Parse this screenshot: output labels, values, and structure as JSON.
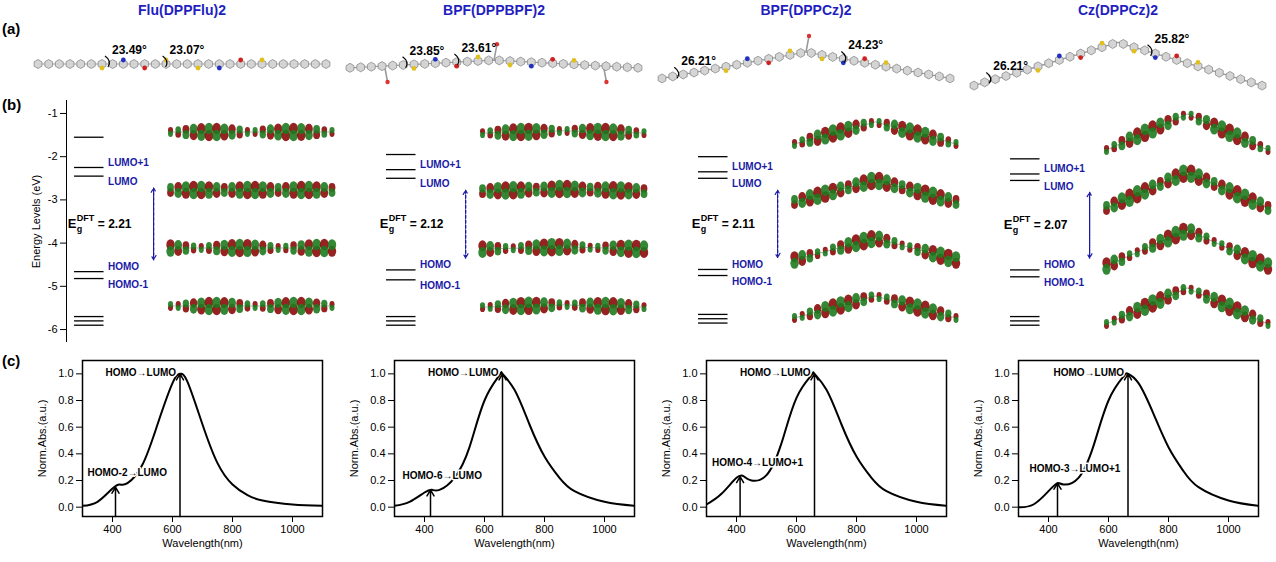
{
  "figure": {
    "panel_labels": [
      "(a)",
      "(b)",
      "(c)"
    ],
    "energy_axis": {
      "label": "Energy Levels (eV)",
      "ylim": [
        -6.3,
        -0.7
      ],
      "yticks": [
        -1,
        -2,
        -3,
        -4,
        -5,
        -6
      ]
    },
    "molecules": [
      {
        "name": "Flu(DPPFlu)2",
        "angles": [
          "23.49°",
          "23.07°"
        ],
        "levels": [
          -1.55,
          -2.25,
          -2.45,
          -4.66,
          -4.82,
          -5.7,
          -5.8,
          -5.9
        ],
        "level_labels": [
          null,
          "LUMO+1",
          "LUMO",
          "HOMO",
          "HOMO-1",
          null,
          null,
          null
        ],
        "gap": {
          "symbol": "E",
          "sub": "g",
          "sup": "DFT",
          "sign": "=",
          "value": 2.21
        }
      },
      {
        "name": "BPF(DPPBPF)2",
        "angles": [
          "23.85°",
          "23.61°"
        ],
        "levels": [
          -1.95,
          -2.3,
          -2.5,
          -4.62,
          -4.85,
          -5.7,
          -5.8,
          -5.9
        ],
        "level_labels": [
          null,
          "LUMO+1",
          "LUMO",
          "HOMO",
          "HOMO-1",
          null,
          null,
          null
        ],
        "gap": {
          "symbol": "E",
          "sub": "g",
          "sup": "DFT",
          "sign": "=",
          "value": 2.12
        }
      },
      {
        "name": "BPF(DPPCz)2",
        "angles": [
          "26.21°",
          "24.23°"
        ],
        "levels": [
          -2.0,
          -2.35,
          -2.5,
          -4.61,
          -4.75,
          -5.65,
          -5.75,
          -5.85
        ],
        "level_labels": [
          null,
          "LUMO+1",
          "LUMO",
          "HOMO",
          "HOMO-1",
          null,
          null,
          null
        ],
        "gap": {
          "symbol": "E",
          "sub": "g",
          "sup": "DFT",
          "sign": "=",
          "value": 2.11
        }
      },
      {
        "name": "Cz(DPPCz)2",
        "angles": [
          "26.21°",
          "25.82°"
        ],
        "levels": [
          -2.05,
          -2.4,
          -2.55,
          -4.62,
          -4.78,
          -5.7,
          -5.8,
          -5.9
        ],
        "level_labels": [
          null,
          "LUMO+1",
          "LUMO",
          "HOMO",
          "HOMO-1",
          null,
          null,
          null
        ],
        "gap": {
          "symbol": "E",
          "sub": "g",
          "sup": "DFT",
          "sign": "=",
          "value": 2.07
        }
      }
    ]
  },
  "chart_data": [
    {
      "type": "line",
      "xlabel": "Wavelength(nm)",
      "ylabel": "Norm.Abs.(a.u.)",
      "color": "#000000",
      "xlim": [
        300,
        1100
      ],
      "xticks": [
        400,
        600,
        800,
        1000
      ],
      "ylim": [
        -0.07,
        1.1
      ],
      "yticks": [
        {
          "value": 0,
          "label": "0.0"
        },
        0.2,
        0.4,
        0.6,
        0.8,
        {
          "value": 1,
          "label": "1.0"
        }
      ],
      "x": [
        300,
        350,
        400,
        425,
        450,
        500,
        550,
        600,
        625,
        650,
        700,
        750,
        800,
        850,
        900,
        1000,
        1100
      ],
      "values": [
        0.01,
        0.04,
        0.14,
        0.17,
        0.18,
        0.32,
        0.62,
        0.93,
        1.0,
        0.94,
        0.62,
        0.33,
        0.17,
        0.09,
        0.05,
        0.02,
        0.01
      ],
      "annotations": [
        {
          "text": "HOMO→LUMO",
          "x": 625,
          "y": 1.0
        },
        {
          "text": "HOMO-2→LUMO",
          "x": 410,
          "y": 0.15
        }
      ]
    },
    {
      "type": "line",
      "xlabel": "Wavelength(nm)",
      "ylabel": "Norm.Abs.(a.u.)",
      "color": "#000000",
      "xlim": [
        300,
        1100
      ],
      "xticks": [
        400,
        600,
        800,
        1000
      ],
      "ylim": [
        -0.07,
        1.1
      ],
      "yticks": [
        {
          "value": 0,
          "label": "0.0"
        },
        0.2,
        0.4,
        0.6,
        0.8,
        {
          "value": 1,
          "label": "1.0"
        }
      ],
      "x": [
        300,
        350,
        400,
        425,
        450,
        500,
        550,
        600,
        650,
        660,
        700,
        750,
        800,
        850,
        900,
        1000,
        1100
      ],
      "values": [
        0.01,
        0.04,
        0.11,
        0.13,
        0.13,
        0.22,
        0.45,
        0.8,
        0.99,
        1.0,
        0.88,
        0.62,
        0.38,
        0.22,
        0.12,
        0.04,
        0.01
      ],
      "annotations": [
        {
          "text": "HOMO→LUMO",
          "x": 660,
          "y": 1.0
        },
        {
          "text": "HOMO-6→LUMO",
          "x": 420,
          "y": 0.13
        }
      ]
    },
    {
      "type": "line",
      "xlabel": "Wavelength(nm)",
      "ylabel": "Norm.Abs.(a.u.)",
      "color": "#000000",
      "xlim": [
        300,
        1100
      ],
      "xticks": [
        400,
        600,
        800,
        1000
      ],
      "ylim": [
        -0.07,
        1.1
      ],
      "yticks": [
        {
          "value": 0,
          "label": "0.0"
        },
        0.2,
        0.4,
        0.6,
        0.8,
        {
          "value": 1,
          "label": "1.0"
        }
      ],
      "x": [
        300,
        350,
        400,
        425,
        450,
        500,
        550,
        600,
        650,
        660,
        700,
        750,
        800,
        850,
        900,
        1000,
        1100
      ],
      "values": [
        0.02,
        0.1,
        0.22,
        0.23,
        0.2,
        0.24,
        0.48,
        0.82,
        0.99,
        1.0,
        0.88,
        0.62,
        0.38,
        0.22,
        0.12,
        0.04,
        0.01
      ],
      "annotations": [
        {
          "text": "HOMO→LUMO",
          "x": 660,
          "y": 1.0
        },
        {
          "text": "HOMO-4→LUMO+1",
          "x": 412,
          "y": 0.23
        }
      ]
    },
    {
      "type": "line",
      "xlabel": "Wavelength(nm)",
      "ylabel": "Norm.Abs.(a.u.)",
      "color": "#000000",
      "xlim": [
        300,
        1100
      ],
      "xticks": [
        400,
        600,
        800,
        1000
      ],
      "ylim": [
        -0.07,
        1.1
      ],
      "yticks": [
        {
          "value": 0,
          "label": "0.0"
        },
        0.2,
        0.4,
        0.6,
        0.8,
        {
          "value": 1,
          "label": "1.0"
        }
      ],
      "x": [
        300,
        350,
        400,
        430,
        450,
        500,
        550,
        600,
        650,
        665,
        700,
        750,
        800,
        850,
        900,
        1000,
        1100
      ],
      "values": [
        0.0,
        0.02,
        0.12,
        0.18,
        0.17,
        0.22,
        0.46,
        0.8,
        0.98,
        1.0,
        0.93,
        0.7,
        0.45,
        0.27,
        0.15,
        0.05,
        0.01
      ],
      "annotations": [
        {
          "text": "HOMO→LUMO",
          "x": 665,
          "y": 1.0
        },
        {
          "text": "HOMO-3→LUMO+1",
          "x": 430,
          "y": 0.18
        }
      ]
    }
  ]
}
